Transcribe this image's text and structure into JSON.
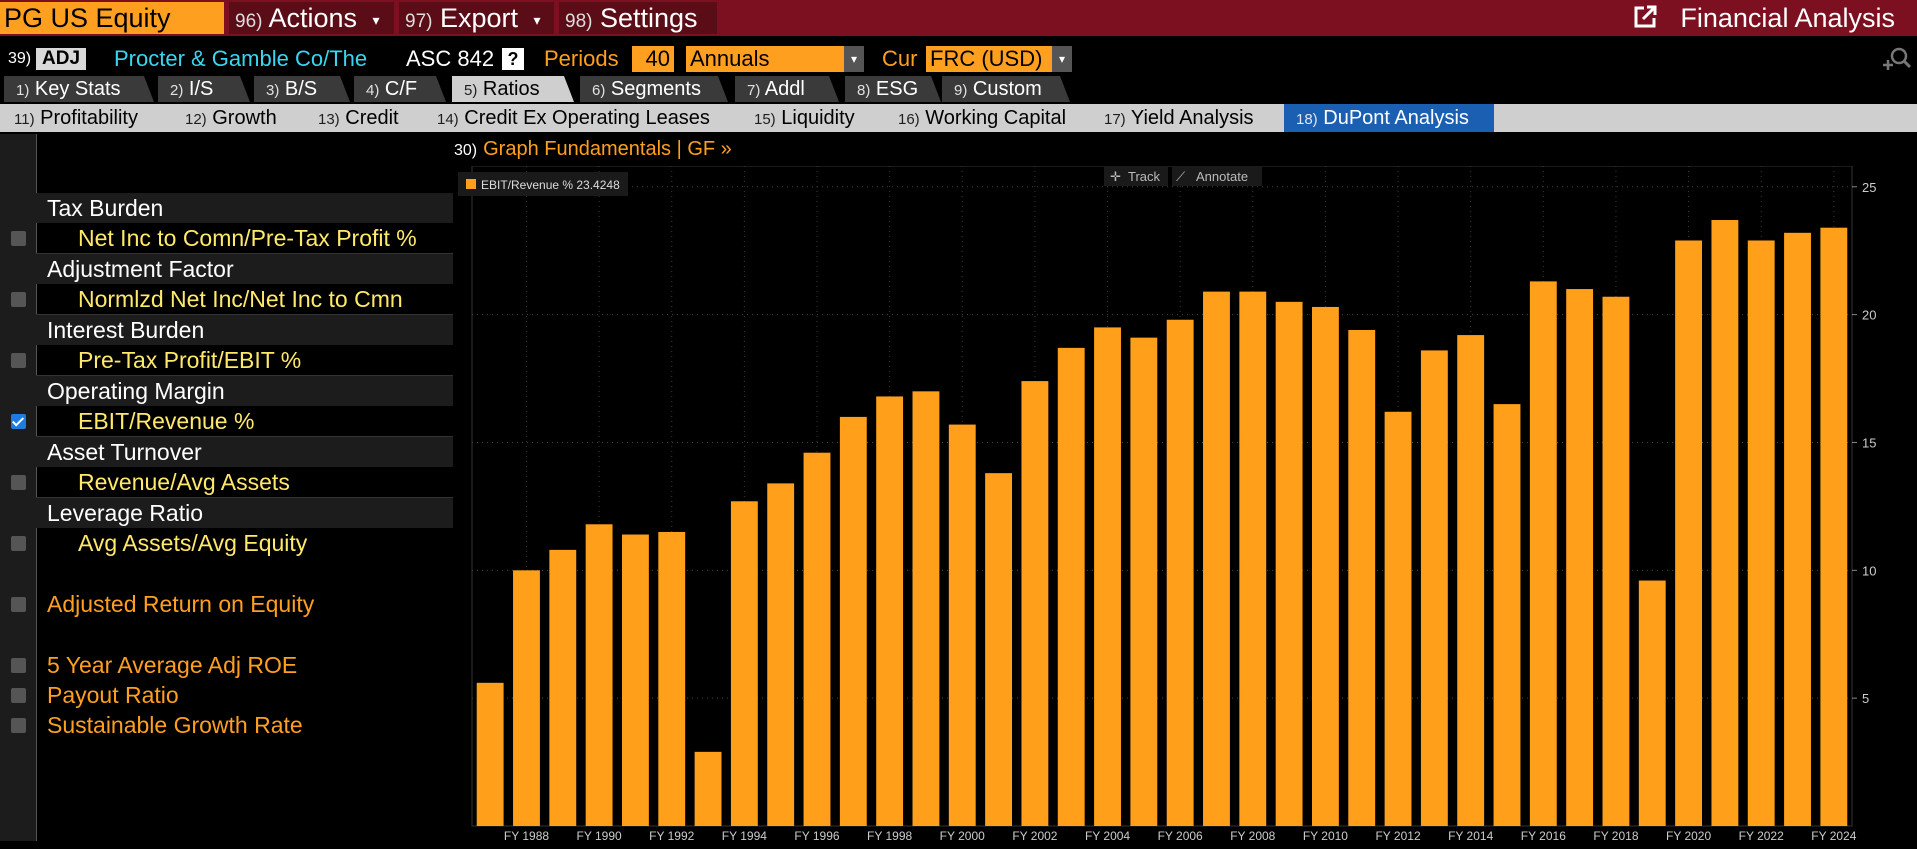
{
  "topbar": {
    "ticker": "PG US Equity",
    "menus": [
      {
        "num": "96)",
        "label": "Actions",
        "caret": "▾"
      },
      {
        "num": "97)",
        "label": "Export",
        "caret": "▾"
      },
      {
        "num": "98)",
        "label": "Settings"
      }
    ],
    "right_title": "Financial Analysis"
  },
  "security_row": {
    "num": "39)",
    "adj_badge": "ADJ",
    "company": "Procter & Gamble Co/The",
    "standard": "ASC 842",
    "help": "?",
    "periods_label": "Periods",
    "periods_value": "40",
    "frequency": "Annuals",
    "cur_label": "Cur",
    "currency": "FRC (USD)"
  },
  "tabs_main": [
    {
      "num": "1)",
      "label": "Key Stats"
    },
    {
      "num": "2)",
      "label": "I/S"
    },
    {
      "num": "3)",
      "label": "B/S"
    },
    {
      "num": "4)",
      "label": "C/F"
    },
    {
      "num": "5)",
      "label": "Ratios"
    },
    {
      "num": "6)",
      "label": "Segments"
    },
    {
      "num": "7)",
      "label": "Addl"
    },
    {
      "num": "8)",
      "label": "ESG"
    },
    {
      "num": "9)",
      "label": "Custom"
    }
  ],
  "tabs_sub": [
    {
      "num": "11)",
      "label": "Profitability"
    },
    {
      "num": "12)",
      "label": "Growth"
    },
    {
      "num": "13)",
      "label": "Credit"
    },
    {
      "num": "14)",
      "label": "Credit Ex Operating Leases"
    },
    {
      "num": "15)",
      "label": "Liquidity"
    },
    {
      "num": "16)",
      "label": "Working Capital"
    },
    {
      "num": "17)",
      "label": "Yield Analysis"
    },
    {
      "num": "18)",
      "label": "DuPont Analysis"
    }
  ],
  "left_panel": {
    "rows": [
      {
        "label": "Tax Burden"
      },
      {
        "label": "Net Inc to Comn/Pre-Tax Profit %"
      },
      {
        "label": "Adjustment Factor"
      },
      {
        "label": "Normlzd Net Inc/Net Inc to Cmn"
      },
      {
        "label": "Interest Burden"
      },
      {
        "label": "Pre-Tax Profit/EBIT %"
      },
      {
        "label": "Operating Margin"
      },
      {
        "label": "EBIT/Revenue %"
      },
      {
        "label": "Asset Turnover"
      },
      {
        "label": "Revenue/Avg Assets"
      },
      {
        "label": "Leverage Ratio"
      },
      {
        "label": "Avg Assets/Avg Equity"
      },
      {
        "label": "Adjusted Return on Equity"
      },
      {
        "label": "5 Year Average Adj ROE"
      },
      {
        "label": "Payout Ratio"
      },
      {
        "label": "Sustainable Growth Rate"
      }
    ]
  },
  "graph": {
    "num": "30)",
    "title": "Graph Fundamentals | GF »",
    "track_label": "Track",
    "annotate_label": "Annotate"
  },
  "colors": {
    "bar": "#ff9f1a",
    "accent": "#ff9f20",
    "brand_bar": "#7d1020",
    "active_tab": "#1b5fb3"
  },
  "chart_data": {
    "type": "bar",
    "legend": "EBIT/Revenue % 23.4248",
    "x": [
      "FY 1987",
      "FY 1988",
      "FY 1989",
      "FY 1990",
      "FY 1991",
      "FY 1992",
      "FY 1993",
      "FY 1994",
      "FY 1995",
      "FY 1996",
      "FY 1997",
      "FY 1998",
      "FY 1999",
      "FY 2000",
      "FY 2001",
      "FY 2002",
      "FY 2003",
      "FY 2004",
      "FY 2005",
      "FY 2006",
      "FY 2007",
      "FY 2008",
      "FY 2009",
      "FY 2010",
      "FY 2011",
      "FY 2012",
      "FY 2013",
      "FY 2014",
      "FY 2015",
      "FY 2016",
      "FY 2017",
      "FY 2018",
      "FY 2019",
      "FY 2020",
      "FY 2021",
      "FY 2022",
      "FY 2023",
      "FY 2024"
    ],
    "x_tick_labels": [
      "FY 1988",
      "FY 1990",
      "FY 1992",
      "FY 1994",
      "FY 1996",
      "FY 1998",
      "FY 2000",
      "FY 2002",
      "FY 2004",
      "FY 2006",
      "FY 2008",
      "FY 2010",
      "FY 2012",
      "FY 2014",
      "FY 2016",
      "FY 2018",
      "FY 2020",
      "FY 2022",
      "FY 2024"
    ],
    "series": [
      {
        "name": "EBIT/Revenue %",
        "values": [
          5.6,
          10.0,
          10.8,
          11.8,
          11.4,
          11.5,
          2.9,
          12.7,
          13.4,
          14.6,
          16.0,
          16.8,
          17.0,
          15.7,
          13.8,
          17.4,
          18.7,
          19.5,
          19.1,
          19.8,
          20.9,
          20.9,
          20.5,
          20.3,
          19.4,
          16.2,
          18.6,
          19.2,
          16.5,
          21.3,
          21.0,
          20.7,
          9.6,
          22.9,
          23.7,
          22.9,
          23.2,
          23.4
        ]
      }
    ],
    "y_ticks": [
      5,
      10,
      15,
      20,
      25
    ],
    "ylim": [
      0,
      25.5
    ],
    "grid": true,
    "legend_position": "top-left",
    "y_axis_position": "right"
  }
}
